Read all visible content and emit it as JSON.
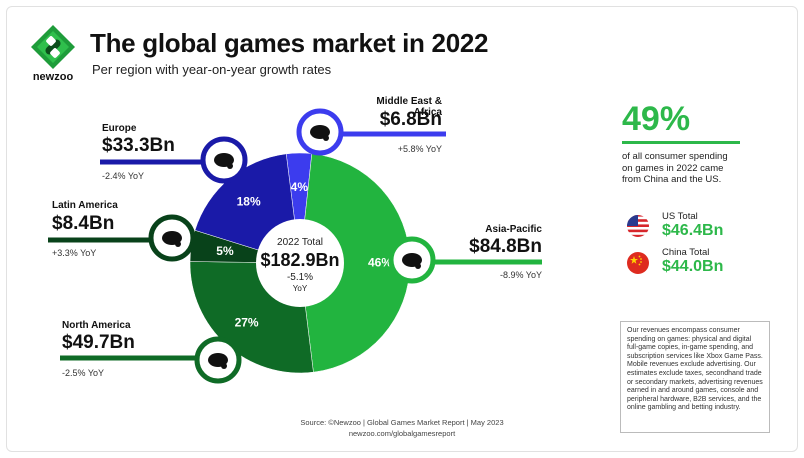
{
  "header": {
    "title": "The global games market in 2022",
    "subtitle": "Per region with year-on-year growth rates",
    "logo_text": "newzoo"
  },
  "center": {
    "label": "2022 Total",
    "value": "$182.9Bn",
    "yoy": "-5.1%",
    "yoy_label": "YoY"
  },
  "regions": {
    "europe": {
      "name": "Europe",
      "value": "$33.3Bn",
      "yoy": "-2.4% YoY"
    },
    "mea": {
      "name": "Middle East & Africa",
      "value": "$6.8Bn",
      "yoy": "+5.8% YoY"
    },
    "latam": {
      "name": "Latin America",
      "value": "$8.4Bn",
      "yoy": "+3.3% YoY"
    },
    "apac": {
      "name": "Asia-Pacific",
      "value": "$84.8Bn",
      "yoy": "-8.9% YoY"
    },
    "na": {
      "name": "North America",
      "value": "$49.7Bn",
      "yoy": "-2.5% YoY"
    }
  },
  "stat": {
    "value": "49%",
    "text": "of all consumer spending on games in 2022 came from China and the US."
  },
  "us": {
    "label": "US Total",
    "value": "$46.4Bn",
    "icon": "us-flag-icon"
  },
  "china": {
    "label": "China Total",
    "value": "$44.0Bn",
    "icon": "china-flag-icon"
  },
  "note": "Our revenues encompass consumer spending on games: physical and digital full-game copies, in-game spending, and subscription services like Xbox Game Pass. Mobile revenues exclude advertising. Our estimates exclude taxes, secondhand trade or secondary markets, advertising revenues earned in and around games, console and peripheral hardware, B2B services, and the online gambling and betting industry.",
  "source": "Source: ©Newzoo | Global Games Market Report | May 2023",
  "source_url": "newzoo.com/globalgamesreport",
  "chart_data": {
    "type": "pie",
    "total": 182.9,
    "unit": "$Bn",
    "slices": [
      {
        "name": "Middle East & Africa",
        "value": 6.8,
        "percent": "4%",
        "yoy": 5.8,
        "color": "#3c3cee"
      },
      {
        "name": "Asia-Pacific",
        "value": 84.8,
        "percent": "46%",
        "yoy": -8.9,
        "color": "#22b43f"
      },
      {
        "name": "North America",
        "value": 49.7,
        "percent": "27%",
        "yoy": -2.5,
        "color": "#0f6b26"
      },
      {
        "name": "Latin America",
        "value": 8.4,
        "percent": "5%",
        "yoy": 3.3,
        "color": "#08421a"
      },
      {
        "name": "Europe",
        "value": 33.3,
        "percent": "18%",
        "yoy": -2.4,
        "color": "#1a1aa8"
      }
    ]
  }
}
